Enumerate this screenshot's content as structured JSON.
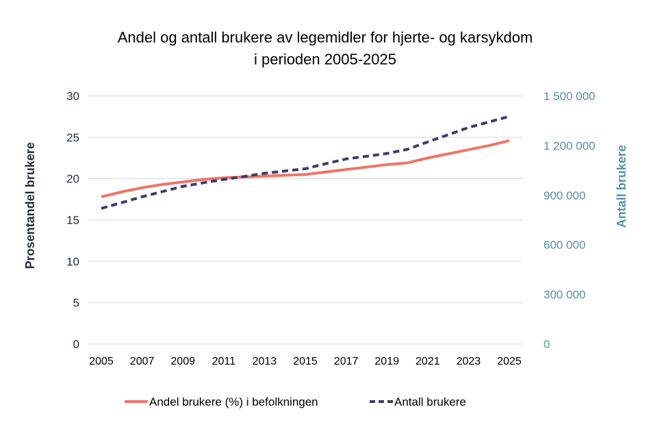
{
  "chart_data": {
    "type": "line",
    "title": "Andel og antall brukere av legemidler for hjerte- og karsykdom",
    "subtitle": "i perioden 2005-2025",
    "ylabel": "Prosentandel brukere",
    "y2label": "Antall brukere",
    "ylim": [
      0,
      30
    ],
    "y2lim": [
      0,
      1500000
    ],
    "yticks": [
      "0",
      "5",
      "10",
      "15",
      "20",
      "25",
      "30"
    ],
    "y2ticks": [
      "0",
      "300 000",
      "600 000",
      "900 000",
      "1 200 000",
      "1 500 000"
    ],
    "xticks": [
      "2005",
      "2007",
      "2009",
      "2011",
      "2013",
      "2015",
      "2017",
      "2019",
      "2021",
      "2023",
      "2025"
    ],
    "x": [
      2005,
      2006,
      2007,
      2008,
      2009,
      2010,
      2011,
      2012,
      2013,
      2014,
      2015,
      2016,
      2017,
      2018,
      2019,
      2020,
      2021,
      2022,
      2023,
      2024,
      2025
    ],
    "grid": true,
    "legend": "bottom",
    "series": [
      {
        "name": "Andel brukere (%) i befolkningen",
        "axis": "left",
        "color": "#f07467",
        "style": "solid",
        "values": [
          17.8,
          18.4,
          18.9,
          19.3,
          19.6,
          19.9,
          20.1,
          20.2,
          20.3,
          20.4,
          20.5,
          20.8,
          21.1,
          21.4,
          21.7,
          21.9,
          22.5,
          23.0,
          23.5,
          24.0,
          24.6
        ]
      },
      {
        "name": "Antall brukere",
        "axis": "right",
        "color": "#383d6b",
        "style": "dashed",
        "values": [
          820000,
          855000,
          890000,
          922000,
          953000,
          975000,
          995000,
          1013000,
          1032000,
          1046000,
          1060000,
          1090000,
          1119000,
          1135000,
          1152000,
          1177000,
          1222000,
          1265000,
          1309000,
          1343000,
          1376000
        ]
      }
    ],
    "colors": {
      "left_axis": "#1f2d3d",
      "right_axis": "#5b8fa8",
      "grid": "#e3e3e3"
    }
  }
}
